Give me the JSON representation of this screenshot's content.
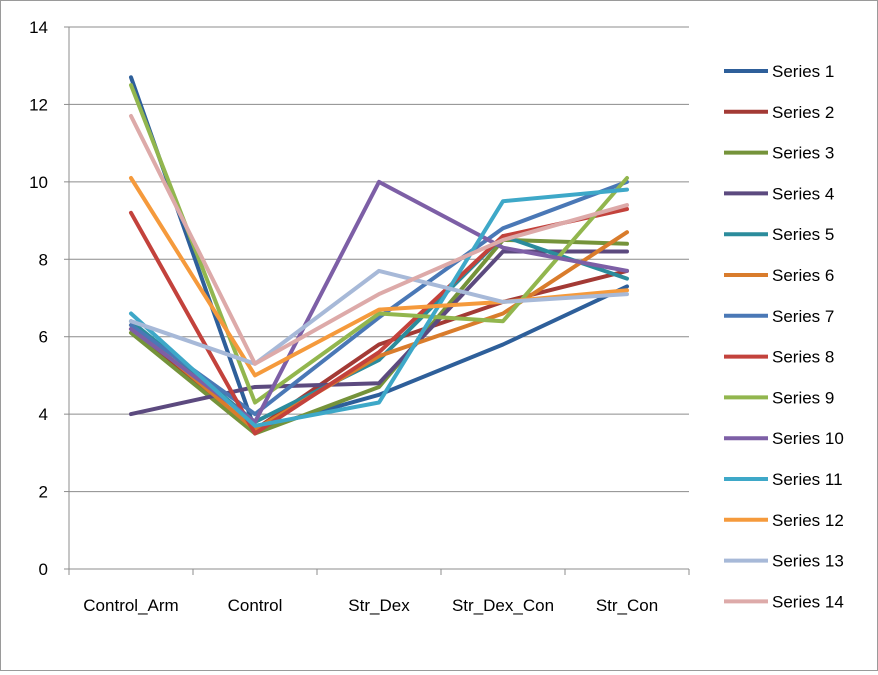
{
  "chart_data": {
    "type": "line",
    "title": "",
    "xlabel": "",
    "ylabel": "",
    "ylim": [
      0,
      14
    ],
    "yticks": [
      0,
      2,
      4,
      6,
      8,
      10,
      12,
      14
    ],
    "ytick_labels": [
      "0",
      "2",
      "4",
      "6",
      "8",
      "10",
      "12",
      "14"
    ],
    "grid": true,
    "legend_position": "right",
    "categories": [
      "Control_Arm",
      "Control",
      "Str_Dex",
      "Str_Dex_Con",
      "Str_Con"
    ],
    "series": [
      {
        "name": "Series 1",
        "color": "#2e5f9a",
        "values": [
          12.7,
          3.6,
          4.5,
          5.8,
          7.3
        ]
      },
      {
        "name": "Series 2",
        "color": "#a33a35",
        "values": [
          6.2,
          3.6,
          5.8,
          6.9,
          7.7
        ]
      },
      {
        "name": "Series 3",
        "color": "#75933a",
        "values": [
          6.1,
          3.5,
          4.7,
          8.5,
          8.4
        ]
      },
      {
        "name": "Series 4",
        "color": "#5c4a7f",
        "values": [
          4.0,
          4.7,
          4.8,
          8.2,
          8.2
        ]
      },
      {
        "name": "Series 5",
        "color": "#2b8c9c",
        "values": [
          6.4,
          3.8,
          5.4,
          8.6,
          7.5
        ]
      },
      {
        "name": "Series 6",
        "color": "#d97c2c",
        "values": [
          6.3,
          3.6,
          5.5,
          6.6,
          8.7
        ]
      },
      {
        "name": "Series 7",
        "color": "#4a78b6",
        "values": [
          6.3,
          4.0,
          6.5,
          8.8,
          10.0
        ]
      },
      {
        "name": "Series 8",
        "color": "#c3423c",
        "values": [
          9.2,
          3.5,
          5.6,
          8.6,
          9.3
        ]
      },
      {
        "name": "Series 9",
        "color": "#92b64e",
        "values": [
          12.5,
          4.3,
          6.6,
          6.4,
          10.1
        ]
      },
      {
        "name": "Series 10",
        "color": "#7d5fa6",
        "values": [
          6.2,
          3.8,
          10.0,
          8.3,
          7.7
        ]
      },
      {
        "name": "Series 11",
        "color": "#3ea8c8",
        "values": [
          6.6,
          3.7,
          4.3,
          9.5,
          9.8
        ]
      },
      {
        "name": "Series 12",
        "color": "#f59a3c",
        "values": [
          10.1,
          5.0,
          6.7,
          6.9,
          7.2
        ]
      },
      {
        "name": "Series 13",
        "color": "#a7b9d8",
        "values": [
          6.4,
          5.3,
          7.7,
          6.9,
          7.1
        ]
      },
      {
        "name": "Series 14",
        "color": "#ddaaa9",
        "values": [
          11.7,
          5.3,
          7.1,
          8.5,
          9.4
        ]
      }
    ]
  }
}
